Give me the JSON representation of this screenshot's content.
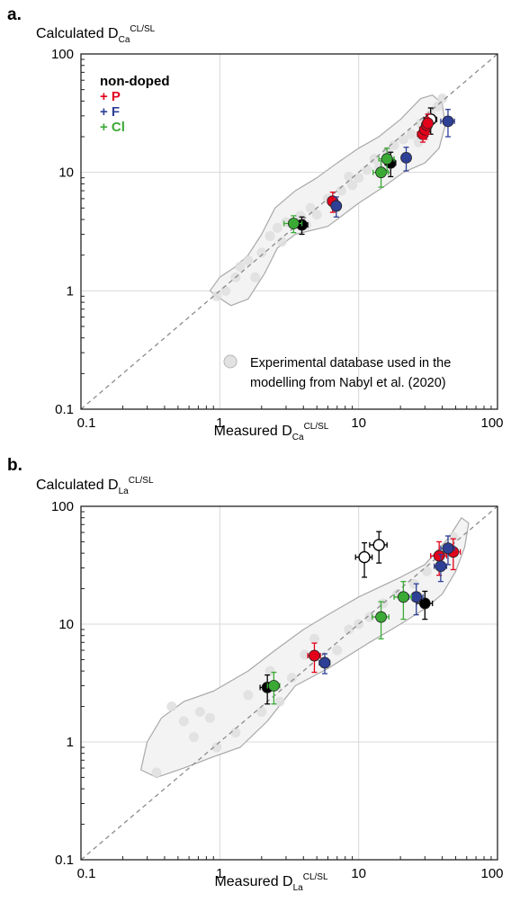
{
  "chart_data": [
    {
      "panel": "a.",
      "type": "scatter",
      "title": "",
      "xlabel": {
        "main": "Measured D",
        "sub": "Ca",
        "sup": "CL/SL"
      },
      "ylabel": {
        "main": "Calculated D",
        "sub": "Ca",
        "sup": "CL/SL"
      },
      "xscale": "log",
      "yscale": "log",
      "xlim": [
        0.1,
        100
      ],
      "ylim": [
        0.1,
        100
      ],
      "ticks": [
        "0.1",
        "1",
        "10",
        "100"
      ],
      "grid": true,
      "one_to_one_line": true,
      "legend": {
        "placement": "top-left",
        "title": "non-doped",
        "entries": [
          {
            "label": "+ P",
            "color": "#e3001b"
          },
          {
            "label": "+ F",
            "color": "#2e3f96"
          },
          {
            "label": "+ Cl",
            "color": "#3aaa35"
          }
        ]
      },
      "database_legend": {
        "placement": "bottom-right",
        "lines": [
          "Experimental database used in the",
          "modelling from Nabyl et al. (2020)"
        ]
      },
      "database_envelope": [
        [
          0.95,
          0.9
        ],
        [
          1.2,
          0.75
        ],
        [
          1.6,
          0.85
        ],
        [
          2.1,
          1.4
        ],
        [
          2.6,
          2.3
        ],
        [
          3.5,
          3.0
        ],
        [
          6,
          3.5
        ],
        [
          10,
          5.5
        ],
        [
          15,
          7.5
        ],
        [
          21,
          10
        ],
        [
          30,
          12
        ],
        [
          38,
          16
        ],
        [
          42,
          25
        ],
        [
          40,
          38
        ],
        [
          34,
          45
        ],
        [
          28,
          42
        ],
        [
          20,
          28
        ],
        [
          14,
          20
        ],
        [
          10,
          16
        ],
        [
          7,
          12
        ],
        [
          5,
          9
        ],
        [
          3.5,
          7
        ],
        [
          2.5,
          5
        ],
        [
          2,
          3
        ],
        [
          1.6,
          2
        ],
        [
          1.3,
          1.6
        ],
        [
          1,
          1.3
        ],
        [
          0.85,
          1.0
        ]
      ],
      "database_points": [
        [
          0.95,
          0.9
        ],
        [
          1.1,
          1.0
        ],
        [
          1.3,
          1.3
        ],
        [
          1.4,
          1.6
        ],
        [
          1.8,
          1.3
        ],
        [
          2.0,
          2.1
        ],
        [
          2.3,
          2.9
        ],
        [
          2.8,
          2.6
        ],
        [
          3.0,
          3.8
        ],
        [
          3.8,
          4.3
        ],
        [
          4.5,
          5.0
        ],
        [
          5.0,
          4.4
        ],
        [
          6.0,
          6.0
        ],
        [
          7.5,
          7.0
        ],
        [
          8.5,
          9.2
        ],
        [
          10,
          9.0
        ],
        [
          11.5,
          10.5
        ],
        [
          13,
          13
        ],
        [
          16,
          15
        ],
        [
          18,
          17
        ],
        [
          21,
          19
        ],
        [
          24,
          21
        ],
        [
          28,
          26
        ],
        [
          33,
          31
        ],
        [
          37,
          36
        ],
        [
          40,
          42
        ],
        [
          1.6,
          1.8
        ],
        [
          2.6,
          3.4
        ],
        [
          4.2,
          3.6
        ],
        [
          9,
          7.8
        ],
        [
          27,
          18
        ],
        [
          14,
          11
        ]
      ],
      "series": [
        {
          "name": "non-doped",
          "color": "#000000",
          "filled": true,
          "points": [
            {
              "x": 3.9,
              "y": 3.6,
              "xerr": 0.4,
              "yerr": 0.6
            },
            {
              "x": 17,
              "y": 12,
              "xerr": 1.5,
              "yerr": 2.8
            },
            {
              "x": 33,
              "y": 28,
              "xerr": 3.5,
              "yerr": 7,
              "filled": false
            }
          ]
        },
        {
          "name": "+ P",
          "color": "#e3001b",
          "filled": true,
          "points": [
            {
              "x": 6.5,
              "y": 5.7,
              "xerr": 0.5,
              "yerr": 1.1
            },
            {
              "x": 29,
              "y": 21,
              "xerr": 2.5,
              "yerr": 3
            },
            {
              "x": 30,
              "y": 23,
              "xerr": 2.5,
              "yerr": 4
            },
            {
              "x": 31,
              "y": 25,
              "xerr": 2.5,
              "yerr": 4
            },
            {
              "x": 31.5,
              "y": 26,
              "xerr": 2.5,
              "yerr": 5
            }
          ]
        },
        {
          "name": "+ F",
          "color": "#2e3f96",
          "filled": true,
          "points": [
            {
              "x": 6.9,
              "y": 5.2,
              "xerr": 0.4,
              "yerr": 1.0
            },
            {
              "x": 22,
              "y": 13.3,
              "xerr": 1.5,
              "yerr": 3
            },
            {
              "x": 44,
              "y": 27,
              "xerr": 5,
              "yerr": 7
            }
          ]
        },
        {
          "name": "+ Cl",
          "color": "#3aaa35",
          "filled": true,
          "points": [
            {
              "x": 3.4,
              "y": 3.7,
              "xerr": 0.5,
              "yerr": 0.6
            },
            {
              "x": 14.5,
              "y": 10,
              "xerr": 1.8,
              "yerr": 2.5
            },
            {
              "x": 16,
              "y": 13,
              "xerr": 2,
              "yerr": 3
            }
          ]
        }
      ]
    },
    {
      "panel": "b.",
      "type": "scatter",
      "title": "",
      "xlabel": {
        "main": "Measured D",
        "sub": "La",
        "sup": "CL/SL"
      },
      "ylabel": {
        "main": "Calculated D",
        "sub": "La",
        "sup": "CL/SL"
      },
      "xscale": "log",
      "yscale": "log",
      "xlim": [
        0.1,
        100
      ],
      "ylim": [
        0.1,
        100
      ],
      "ticks": [
        "0.1",
        "1",
        "10",
        "100"
      ],
      "grid": true,
      "one_to_one_line": true,
      "database_envelope": [
        [
          0.27,
          0.58
        ],
        [
          0.35,
          0.5
        ],
        [
          0.55,
          0.6
        ],
        [
          0.9,
          0.75
        ],
        [
          1.4,
          0.9
        ],
        [
          2.2,
          1.5
        ],
        [
          3.5,
          3.0
        ],
        [
          6,
          4.2
        ],
        [
          12,
          7
        ],
        [
          20,
          10
        ],
        [
          30,
          13.5
        ],
        [
          40,
          18
        ],
        [
          50,
          28
        ],
        [
          58,
          45
        ],
        [
          62,
          72
        ],
        [
          55,
          80
        ],
        [
          45,
          55
        ],
        [
          30,
          32
        ],
        [
          20,
          25
        ],
        [
          10,
          17
        ],
        [
          6,
          12
        ],
        [
          4,
          9
        ],
        [
          2.5,
          6
        ],
        [
          1.6,
          4
        ],
        [
          0.9,
          2.7
        ],
        [
          0.55,
          2.2
        ],
        [
          0.38,
          1.6
        ],
        [
          0.3,
          1.0
        ]
      ],
      "database_points": [
        [
          0.35,
          0.55
        ],
        [
          0.45,
          2.0
        ],
        [
          0.55,
          1.5
        ],
        [
          0.65,
          1.1
        ],
        [
          0.72,
          1.8
        ],
        [
          0.85,
          1.6
        ],
        [
          0.95,
          0.9
        ],
        [
          1.3,
          1.2
        ],
        [
          1.6,
          2.5
        ],
        [
          2.0,
          1.8
        ],
        [
          2.3,
          4.0
        ],
        [
          2.7,
          2.2
        ],
        [
          3.3,
          3.5
        ],
        [
          4.1,
          5.5
        ],
        [
          4.8,
          7.5
        ],
        [
          5.6,
          4.8
        ],
        [
          7,
          6.0
        ],
        [
          8.5,
          9.0
        ],
        [
          10,
          10
        ],
        [
          12,
          11.5
        ],
        [
          15,
          15
        ],
        [
          19,
          18
        ],
        [
          25,
          22
        ],
        [
          31,
          28
        ],
        [
          40,
          40
        ],
        [
          48,
          55
        ]
      ],
      "series": [
        {
          "name": "non-doped",
          "color": "#000000",
          "filled": true,
          "points": [
            {
              "x": 2.2,
              "y": 2.9,
              "xerr": 0.25,
              "yerr": 0.8
            },
            {
              "x": 30,
              "y": 15,
              "xerr": 4,
              "yerr": 4
            },
            {
              "x": 11,
              "y": 37,
              "xerr": 1.5,
              "yerr": 12,
              "filled": false
            },
            {
              "x": 14,
              "y": 47,
              "xerr": 2,
              "yerr": 14,
              "filled": false
            }
          ]
        },
        {
          "name": "+ P",
          "color": "#e3001b",
          "filled": true,
          "points": [
            {
              "x": 4.8,
              "y": 5.4,
              "xerr": 0.5,
              "yerr": 1.5
            },
            {
              "x": 38,
              "y": 38,
              "xerr": 5,
              "yerr": 12
            },
            {
              "x": 48,
              "y": 41,
              "xerr": 6,
              "yerr": 12
            }
          ]
        },
        {
          "name": "+ F",
          "color": "#2e3f96",
          "filled": true,
          "points": [
            {
              "x": 5.7,
              "y": 4.7,
              "xerr": 0.5,
              "yerr": 0.9
            },
            {
              "x": 26,
              "y": 17,
              "xerr": 3,
              "yerr": 5
            },
            {
              "x": 39,
              "y": 31,
              "xerr": 4,
              "yerr": 8
            },
            {
              "x": 44,
              "y": 44,
              "xerr": 5,
              "yerr": 12
            }
          ]
        },
        {
          "name": "+ Cl",
          "color": "#3aaa35",
          "filled": true,
          "points": [
            {
              "x": 2.45,
              "y": 3.0,
              "xerr": 0.25,
              "yerr": 0.9
            },
            {
              "x": 14.5,
              "y": 11.5,
              "xerr": 2,
              "yerr": 4
            },
            {
              "x": 21,
              "y": 17,
              "xerr": 3,
              "yerr": 6
            }
          ]
        }
      ]
    }
  ]
}
